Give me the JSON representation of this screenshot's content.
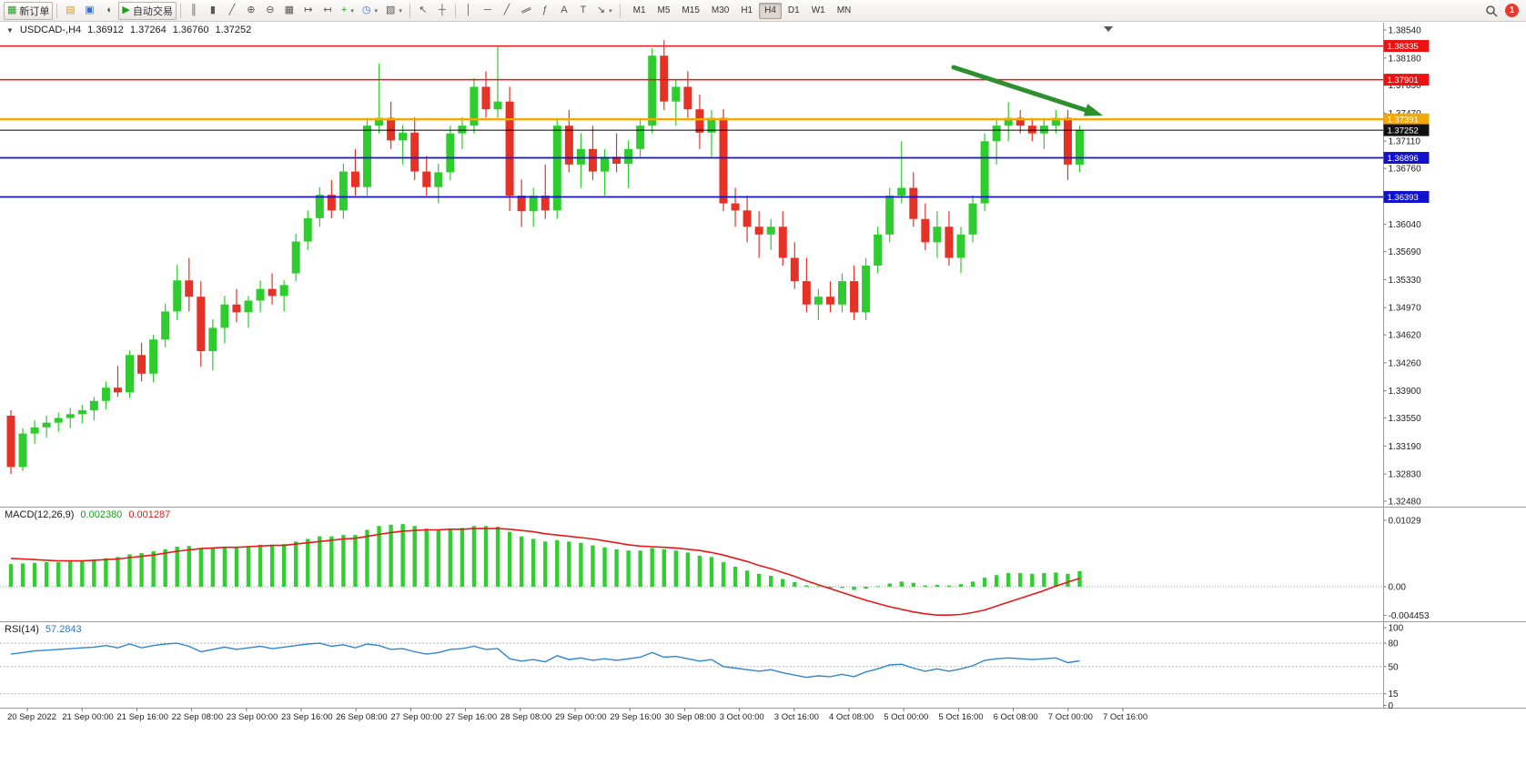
{
  "toolbar": {
    "new_order": {
      "label": "新订单",
      "icon_glyph": "▦"
    },
    "autotrade": {
      "label": "自动交易",
      "icon_glyph": "▶"
    },
    "icons": {
      "market_watch": "▤",
      "profile": "▣",
      "sound": "◖",
      "chart_bars": "║",
      "chart_candles": "▮",
      "chart_line": "╱",
      "zoom_in": "⊕",
      "zoom_out": "⊖",
      "tile_windows": "▦",
      "auto_scroll": "↦",
      "chart_shift": "↤",
      "indicators": "+",
      "periods": "◷",
      "templates": "▧",
      "cursor": "↖",
      "crosshair": "┼",
      "vline": "│",
      "hline": "─",
      "trendline": "╱",
      "channel": "∥",
      "fibonacci": "ƒ",
      "text": "A",
      "label": "T",
      "shapes": "↘",
      "dropdown": "▾"
    },
    "timeframes": [
      "M1",
      "M5",
      "M15",
      "M30",
      "H1",
      "H4",
      "D1",
      "W1",
      "MN"
    ],
    "active_timeframe": "H4",
    "notification_badge": "1"
  },
  "chart": {
    "collapse_glyph": "▼",
    "symbol": "USDCAD-,H4",
    "open": "1.36912",
    "high": "1.37264",
    "low": "1.36760",
    "close": "1.37252",
    "scale": {
      "max": 1.3854,
      "min": 1.3248
    },
    "axis_labels": [
      "1.38540",
      "1.38180",
      "1.37830",
      "1.37470",
      "1.37110",
      "1.36760",
      "1.36400",
      "1.36040",
      "1.35690",
      "1.35330",
      "1.34970",
      "1.34620",
      "1.34260",
      "1.33900",
      "1.33550",
      "1.33190",
      "1.32830",
      "1.32480"
    ],
    "hlines": [
      {
        "price": 1.38335,
        "label": "1.38335",
        "color": "#ee1111",
        "width": 1.4
      },
      {
        "price": 1.37901,
        "label": "1.37901",
        "color": "#ee1111",
        "width": 1.4
      },
      {
        "price": 1.37391,
        "label": "1.37391",
        "color": "#f5a800",
        "width": 2.4
      },
      {
        "price": 1.36896,
        "label": "1.36896",
        "color": "#1212cc",
        "width": 1.8
      },
      {
        "price": 1.36393,
        "label": "1.36393",
        "color": "#1212cc",
        "width": 1.8
      }
    ],
    "current_price": {
      "price": 1.37252,
      "label": "1.37252"
    },
    "colors": {
      "bull": "#2ecc2e",
      "bear": "#e63226",
      "macd_hist": "#32cd32",
      "macd_signal": "#e81818",
      "rsi": "#2e86d0",
      "arrow": "#2d8f2d"
    },
    "candles": [
      [
        1.3358,
        1.3365,
        1.3283,
        1.3292
      ],
      [
        1.3292,
        1.3342,
        1.3287,
        1.3335
      ],
      [
        1.3335,
        1.3352,
        1.3322,
        1.3343
      ],
      [
        1.3343,
        1.3358,
        1.333,
        1.3349
      ],
      [
        1.3349,
        1.3362,
        1.3337,
        1.3355
      ],
      [
        1.3355,
        1.3368,
        1.3342,
        1.336
      ],
      [
        1.336,
        1.3372,
        1.3348,
        1.3365
      ],
      [
        1.3365,
        1.3382,
        1.3352,
        1.3377
      ],
      [
        1.3377,
        1.3402,
        1.3366,
        1.3394
      ],
      [
        1.3394,
        1.3422,
        1.3382,
        1.3388
      ],
      [
        1.3388,
        1.3442,
        1.3381,
        1.3436
      ],
      [
        1.3436,
        1.3452,
        1.3402,
        1.3412
      ],
      [
        1.3412,
        1.3462,
        1.3401,
        1.3456
      ],
      [
        1.3456,
        1.3502,
        1.3446,
        1.3492
      ],
      [
        1.3492,
        1.3552,
        1.3481,
        1.3532
      ],
      [
        1.3532,
        1.3561,
        1.3492,
        1.3511
      ],
      [
        1.3511,
        1.3531,
        1.3421,
        1.3441
      ],
      [
        1.3441,
        1.3482,
        1.3416,
        1.3471
      ],
      [
        1.3471,
        1.3512,
        1.3451,
        1.3501
      ],
      [
        1.3501,
        1.3521,
        1.3478,
        1.3491
      ],
      [
        1.3491,
        1.3512,
        1.3471,
        1.3506
      ],
      [
        1.3506,
        1.3532,
        1.3491,
        1.3521
      ],
      [
        1.3521,
        1.3541,
        1.3501,
        1.3512
      ],
      [
        1.3512,
        1.3532,
        1.3492,
        1.3526
      ],
      [
        1.3541,
        1.3592,
        1.3531,
        1.3582
      ],
      [
        1.3582,
        1.3622,
        1.3571,
        1.3612
      ],
      [
        1.3612,
        1.3652,
        1.3601,
        1.3642
      ],
      [
        1.3642,
        1.3661,
        1.3612,
        1.3622
      ],
      [
        1.3622,
        1.3682,
        1.3611,
        1.3672
      ],
      [
        1.3672,
        1.3701,
        1.3641,
        1.3652
      ],
      [
        1.3652,
        1.3741,
        1.3641,
        1.3731
      ],
      [
        1.3731,
        1.3811,
        1.3721,
        1.3741
      ],
      [
        1.3741,
        1.3762,
        1.3701,
        1.3712
      ],
      [
        1.3712,
        1.3732,
        1.3681,
        1.3722
      ],
      [
        1.3722,
        1.3742,
        1.3661,
        1.3672
      ],
      [
        1.3672,
        1.3692,
        1.3641,
        1.3652
      ],
      [
        1.3652,
        1.3682,
        1.3631,
        1.3671
      ],
      [
        1.3671,
        1.3731,
        1.3661,
        1.3721
      ],
      [
        1.3721,
        1.3742,
        1.3701,
        1.3731
      ],
      [
        1.3731,
        1.3792,
        1.3721,
        1.3781
      ],
      [
        1.3781,
        1.3801,
        1.3741,
        1.3752
      ],
      [
        1.3752,
        1.3833,
        1.3741,
        1.3762
      ],
      [
        1.3762,
        1.3781,
        1.3621,
        1.3641
      ],
      [
        1.3641,
        1.3662,
        1.3601,
        1.3621
      ],
      [
        1.3621,
        1.3651,
        1.3601,
        1.3641
      ],
      [
        1.3641,
        1.3681,
        1.3611,
        1.3622
      ],
      [
        1.3622,
        1.3741,
        1.3611,
        1.3731
      ],
      [
        1.3731,
        1.3751,
        1.3671,
        1.3681
      ],
      [
        1.3681,
        1.3721,
        1.3651,
        1.3701
      ],
      [
        1.3701,
        1.3731,
        1.3661,
        1.3672
      ],
      [
        1.3672,
        1.3701,
        1.3641,
        1.3691
      ],
      [
        1.3691,
        1.3721,
        1.3671,
        1.3682
      ],
      [
        1.3682,
        1.3712,
        1.3651,
        1.3701
      ],
      [
        1.3701,
        1.3741,
        1.3691,
        1.3731
      ],
      [
        1.3731,
        1.3831,
        1.3721,
        1.3821
      ],
      [
        1.3821,
        1.3841,
        1.3751,
        1.3762
      ],
      [
        1.3762,
        1.3791,
        1.3731,
        1.3781
      ],
      [
        1.3781,
        1.3801,
        1.3741,
        1.3752
      ],
      [
        1.3752,
        1.3771,
        1.3701,
        1.3722
      ],
      [
        1.3722,
        1.3751,
        1.3691,
        1.3741
      ],
      [
        1.3741,
        1.3752,
        1.3621,
        1.3631
      ],
      [
        1.3631,
        1.3651,
        1.3601,
        1.3622
      ],
      [
        1.3622,
        1.3641,
        1.3581,
        1.3601
      ],
      [
        1.3601,
        1.3621,
        1.3561,
        1.3591
      ],
      [
        1.3591,
        1.3611,
        1.3571,
        1.3601
      ],
      [
        1.3601,
        1.3621,
        1.3551,
        1.3561
      ],
      [
        1.3561,
        1.3581,
        1.3521,
        1.3531
      ],
      [
        1.3531,
        1.3561,
        1.3491,
        1.3501
      ],
      [
        1.3501,
        1.3521,
        1.3481,
        1.3511
      ],
      [
        1.3511,
        1.3531,
        1.3491,
        1.3501
      ],
      [
        1.3501,
        1.3541,
        1.3491,
        1.3531
      ],
      [
        1.3531,
        1.3551,
        1.3481,
        1.3491
      ],
      [
        1.3491,
        1.3561,
        1.3481,
        1.3551
      ],
      [
        1.3551,
        1.3601,
        1.3541,
        1.3591
      ],
      [
        1.3591,
        1.3651,
        1.3581,
        1.3641
      ],
      [
        1.3641,
        1.3711,
        1.3631,
        1.3651
      ],
      [
        1.3651,
        1.3671,
        1.3601,
        1.3611
      ],
      [
        1.3611,
        1.3631,
        1.3571,
        1.3581
      ],
      [
        1.3581,
        1.3621,
        1.3561,
        1.3601
      ],
      [
        1.3601,
        1.3621,
        1.3551,
        1.3561
      ],
      [
        1.3561,
        1.3601,
        1.3541,
        1.3591
      ],
      [
        1.3591,
        1.3641,
        1.3581,
        1.3631
      ],
      [
        1.3631,
        1.3721,
        1.3621,
        1.3711
      ],
      [
        1.3711,
        1.3741,
        1.3681,
        1.3731
      ],
      [
        1.3731,
        1.3761,
        1.3711,
        1.3741
      ],
      [
        1.3741,
        1.3751,
        1.3721,
        1.3731
      ],
      [
        1.3731,
        1.3741,
        1.3711,
        1.3721
      ],
      [
        1.3721,
        1.3741,
        1.3701,
        1.3731
      ],
      [
        1.3731,
        1.3751,
        1.3721,
        1.3741
      ],
      [
        1.3741,
        1.3751,
        1.3661,
        1.3681
      ],
      [
        1.3681,
        1.3731,
        1.3671,
        1.3725
      ]
    ]
  },
  "macd": {
    "name": "MACD(12,26,9)",
    "value_main": "0.002380",
    "value_signal": "0.001287",
    "scale": [
      {
        "v": 0.01029,
        "label": "0.01029"
      },
      {
        "v": 0,
        "label": "0.00"
      },
      {
        "v": -0.004453,
        "label": "-0.004453"
      }
    ],
    "histogram": [
      0.0035,
      0.0036,
      0.0037,
      0.0038,
      0.0038,
      0.0039,
      0.004,
      0.0042,
      0.0044,
      0.0046,
      0.005,
      0.0052,
      0.0055,
      0.0058,
      0.0062,
      0.0063,
      0.006,
      0.006,
      0.0062,
      0.0062,
      0.0063,
      0.0065,
      0.0065,
      0.0066,
      0.007,
      0.0074,
      0.0078,
      0.0078,
      0.008,
      0.008,
      0.0088,
      0.0094,
      0.0096,
      0.0097,
      0.0094,
      0.009,
      0.0088,
      0.009,
      0.0091,
      0.0094,
      0.0094,
      0.0093,
      0.0085,
      0.0078,
      0.0074,
      0.007,
      0.0072,
      0.007,
      0.0068,
      0.0064,
      0.0061,
      0.0058,
      0.0056,
      0.0056,
      0.006,
      0.0058,
      0.0056,
      0.0053,
      0.0048,
      0.0046,
      0.0038,
      0.0031,
      0.0025,
      0.002,
      0.0017,
      0.0012,
      0.0007,
      0.0002,
      0.0001,
      -0.0002,
      -0.0002,
      -0.0005,
      -0.0003,
      0.0001,
      0.0005,
      0.0008,
      0.0006,
      0.0002,
      0.0003,
      0.0002,
      0.0004,
      0.0008,
      0.0014,
      0.0018,
      0.0021,
      0.0021,
      0.002,
      0.0021,
      0.0022,
      0.002,
      0.0024
    ],
    "signal": [
      0.0044,
      0.0043,
      0.0042,
      0.0041,
      0.004,
      0.004,
      0.004,
      0.0041,
      0.0042,
      0.0043,
      0.0045,
      0.0047,
      0.0049,
      0.0052,
      0.0055,
      0.0057,
      0.0059,
      0.006,
      0.0061,
      0.0061,
      0.0062,
      0.0063,
      0.0064,
      0.0064,
      0.0066,
      0.0068,
      0.007,
      0.0072,
      0.0074,
      0.0075,
      0.0078,
      0.0081,
      0.0084,
      0.0086,
      0.0087,
      0.0088,
      0.0088,
      0.0089,
      0.0089,
      0.009,
      0.009,
      0.009,
      0.0089,
      0.0087,
      0.0085,
      0.0082,
      0.008,
      0.0078,
      0.0076,
      0.0074,
      0.0071,
      0.0068,
      0.0065,
      0.0063,
      0.0062,
      0.0061,
      0.006,
      0.0058,
      0.0056,
      0.0053,
      0.0049,
      0.0044,
      0.0039,
      0.0033,
      0.0028,
      0.0022,
      0.0016,
      0.0009,
      0.0003,
      -0.0003,
      -0.0009,
      -0.0015,
      -0.0021,
      -0.0026,
      -0.0031,
      -0.0035,
      -0.0039,
      -0.0042,
      -0.0044,
      -0.0044,
      -0.0043,
      -0.004,
      -0.0036,
      -0.003,
      -0.0024,
      -0.0018,
      -0.0012,
      -0.0006,
      0.0001,
      0.0007,
      0.0013
    ]
  },
  "rsi": {
    "name": "RSI(14)",
    "value": "57.2843",
    "levels": [
      80,
      50,
      15
    ],
    "scale": [
      {
        "v": 100,
        "label": "100"
      },
      {
        "v": 80,
        "label": "80"
      },
      {
        "v": 50,
        "label": "50"
      },
      {
        "v": 15,
        "label": "15"
      },
      {
        "v": 0,
        "label": "0"
      }
    ],
    "values": [
      66,
      68,
      70,
      71,
      72,
      73,
      74,
      75,
      77,
      74,
      79,
      74,
      77,
      79,
      80,
      76,
      69,
      72,
      75,
      72,
      74,
      76,
      73,
      75,
      77,
      79,
      80,
      76,
      78,
      74,
      79,
      77,
      72,
      73,
      69,
      66,
      68,
      72,
      73,
      76,
      72,
      73,
      60,
      57,
      59,
      56,
      64,
      59,
      61,
      58,
      60,
      58,
      60,
      62,
      68,
      62,
      63,
      60,
      57,
      59,
      50,
      48,
      46,
      44,
      46,
      42,
      39,
      36,
      38,
      37,
      40,
      37,
      43,
      47,
      52,
      53,
      48,
      44,
      47,
      44,
      47,
      51,
      58,
      60,
      61,
      60,
      59,
      60,
      61,
      55,
      57.28
    ]
  },
  "time_axis": {
    "labels": [
      "20 Sep 2022",
      "21 Sep 00:00",
      "21 Sep 16:00",
      "22 Sep 08:00",
      "23 Sep 00:00",
      "23 Sep 16:00",
      "26 Sep 08:00",
      "27 Sep 00:00",
      "27 Sep 16:00",
      "28 Sep 08:00",
      "29 Sep 00:00",
      "29 Sep 16:00",
      "30 Sep 08:00",
      "3 Oct 00:00",
      "3 Oct 16:00",
      "4 Oct 08:00",
      "5 Oct 00:00",
      "5 Oct 16:00",
      "6 Oct 08:00",
      "7 Oct 00:00",
      "7 Oct 16:00"
    ]
  }
}
